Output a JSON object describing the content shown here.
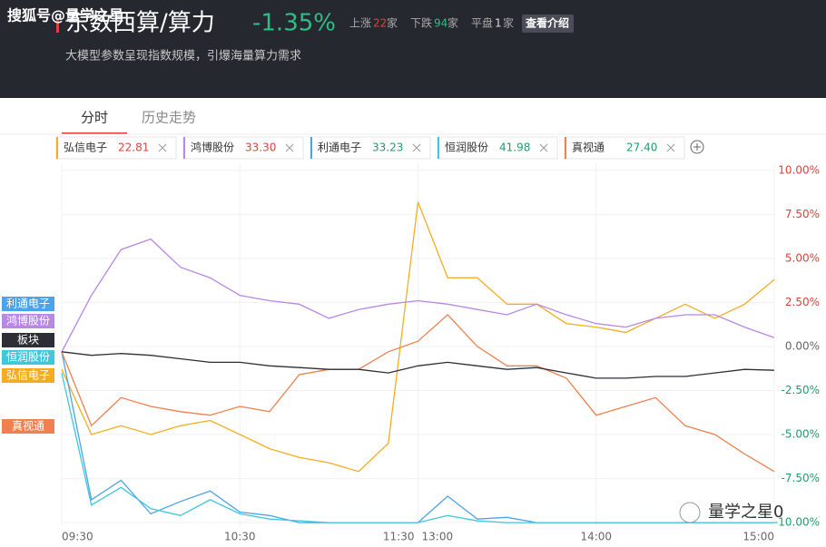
{
  "watermark": {
    "top": "搜狐号@量学之星",
    "bottom": "量学之星0"
  },
  "header": {
    "title": "东数西算/算力",
    "change": "-1.35%",
    "up_label": "上涨",
    "up_count": 22,
    "down_label": "下跌",
    "down_count": 94,
    "flat_label": "平盘",
    "flat_count": 1,
    "unit": "家",
    "button": "查看介绍",
    "subtitle": "大模型参数呈现指数规模，引爆海量算力需求"
  },
  "tabs": [
    "分时",
    "历史走势"
  ],
  "chart_data": {
    "type": "line",
    "categories": [
      "09:30",
      null,
      null,
      null,
      null,
      null,
      "10:30",
      null,
      null,
      null,
      null,
      null,
      "11:30",
      null,
      null,
      null,
      null,
      null,
      "14:00",
      null,
      null,
      null,
      null,
      null,
      "15:00"
    ],
    "break_label": "13:00",
    "ylim": [
      -10.2,
      10.4
    ],
    "yticks": [
      {
        "value": 10,
        "label": "10.00%"
      },
      {
        "value": 7.5,
        "label": "7.50%"
      },
      {
        "value": 5,
        "label": "5.00%"
      },
      {
        "value": 2.5,
        "label": "2.50%"
      },
      {
        "value": 0,
        "label": "0.00%"
      },
      {
        "value": -2.5,
        "label": "-2.50%"
      },
      {
        "value": -5,
        "label": "-5.00%"
      },
      {
        "value": -7.5,
        "label": "-7.50%"
      },
      {
        "value": -10,
        "label": "-10.00%"
      }
    ],
    "grid": true,
    "series": [
      {
        "name": "弘信电子",
        "price": 22.81,
        "price_color": "#e0413a",
        "color": "#f5ad1f",
        "values": [
          -1.3,
          -5,
          -4.5,
          -5,
          -4.5,
          -4.2,
          -5,
          -5.8,
          -6.3,
          -6.6,
          -7.1,
          -5.5,
          8.2,
          3.9,
          3.9,
          2.4,
          2.4,
          1.3,
          1.1,
          0.8,
          1.6,
          2.4,
          1.6,
          2.4,
          3.8
        ]
      },
      {
        "name": "鸿博股份",
        "price": 33.3,
        "price_color": "#e0413a",
        "color": "#b987e6",
        "values": [
          -0.3,
          2.9,
          5.5,
          6.1,
          4.5,
          3.9,
          2.9,
          2.6,
          2.4,
          1.6,
          2.1,
          2.4,
          2.6,
          2.4,
          2.1,
          1.8,
          2.4,
          1.8,
          1.3,
          1.1,
          1.6,
          1.8,
          1.8,
          1.1,
          0.5
        ]
      },
      {
        "name": "利通电子",
        "price": 33.23,
        "price_color": "#1f9e6a",
        "color": "#4da3e8",
        "values": [
          -0.3,
          -8.7,
          -7.6,
          -9.5,
          -8.8,
          -8.2,
          -9.4,
          -9.6,
          -10,
          -10,
          -10,
          -10,
          -10,
          -8.5,
          -9.8,
          -9.7,
          -10,
          -10,
          -10,
          -10,
          -10,
          -10,
          -10,
          -10,
          -10
        ]
      },
      {
        "name": "恒润股份",
        "price": 41.98,
        "price_color": "#1f9e6a",
        "color": "#3ec7dd",
        "values": [
          -1.5,
          -9,
          -8,
          -9.2,
          -9.6,
          -8.7,
          -9.5,
          -9.8,
          -9.9,
          -10,
          -10,
          -10,
          -10,
          -9.6,
          -9.9,
          -10,
          -10,
          -10,
          -10,
          -10,
          -10,
          -10,
          -10,
          -10,
          -10
        ]
      },
      {
        "name": "真视通",
        "price": 27.4,
        "price_color": "#1f9e6a",
        "color": "#f0804f",
        "values": [
          -0.3,
          -4.5,
          -2.9,
          -3.4,
          -3.7,
          -3.9,
          -3.4,
          -3.7,
          -1.6,
          -1.3,
          -1.3,
          -0.3,
          0.3,
          1.8,
          0,
          -1.1,
          -1.1,
          -1.8,
          -3.9,
          -3.4,
          -2.9,
          -4.5,
          -5,
          -6.1,
          -7.1
        ]
      },
      {
        "name": "板块",
        "color": "#2d2f36",
        "values": [
          -0.3,
          -0.5,
          -0.4,
          -0.5,
          -0.7,
          -0.9,
          -0.9,
          -1.1,
          -1.2,
          -1.3,
          -1.3,
          -1.5,
          -1.1,
          -0.9,
          -1.1,
          -1.3,
          -1.2,
          -1.5,
          -1.8,
          -1.8,
          -1.7,
          -1.7,
          -1.5,
          -1.3,
          -1.35
        ]
      }
    ]
  }
}
